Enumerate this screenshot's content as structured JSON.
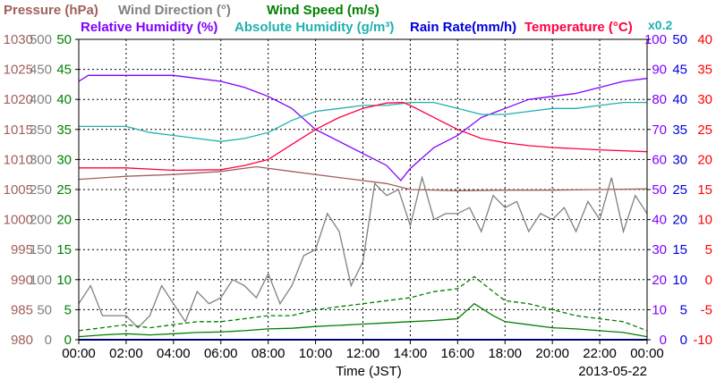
{
  "chart_data": {
    "type": "line",
    "xlabel": "Time (JST)",
    "date": "2013-05-22",
    "x_ticks": [
      "00:00",
      "02:00",
      "04:00",
      "06:00",
      "08:00",
      "10:00",
      "12:00",
      "14:00",
      "16:00",
      "18:00",
      "20:00",
      "22:00",
      "00:00"
    ],
    "x_range_hours": [
      0,
      24
    ],
    "grid": true,
    "legend": [
      {
        "key": "pressure",
        "text": "Pressure (hPa)",
        "color": "#a0605a"
      },
      {
        "key": "wind_dir",
        "text": "Wind Direction (°)",
        "color": "#808080"
      },
      {
        "key": "wind_speed",
        "text": "Wind Speed (m/s)",
        "color": "#008000"
      },
      {
        "key": "rh",
        "text": "Relative Humidity (%)",
        "color": "#8000ff"
      },
      {
        "key": "ah",
        "text": "Absolute Humidity (g/m³)",
        "color": "#20b0b0"
      },
      {
        "key": "rain",
        "text": "Rain Rate(mm/h)",
        "color": "#0000e0"
      },
      {
        "key": "temp",
        "text": "Temperature (°C)",
        "color": "#ff0040"
      }
    ],
    "rain_scale_note": "x0.2",
    "axes": {
      "pressure": {
        "color": "#a0605a",
        "min": 980,
        "max": 1030,
        "ticks": [
          "980",
          "985",
          "990",
          "995",
          "1000",
          "1005",
          "1010",
          "1015",
          "1020",
          "1025",
          "1030"
        ]
      },
      "wind_dir": {
        "color": "#808080",
        "min": 0,
        "max": 500,
        "ticks": [
          "0",
          "50",
          "100",
          "150",
          "200",
          "250",
          "300",
          "350",
          "400",
          "450",
          "500"
        ]
      },
      "wind_speed": {
        "color": "#008000",
        "min": 0,
        "max": 50,
        "ticks": [
          "0",
          "5",
          "10",
          "15",
          "20",
          "25",
          "30",
          "35",
          "40",
          "45",
          "50"
        ]
      },
      "rh_ah": {
        "color": "#8000ff",
        "min": 0,
        "max": 100,
        "ticks": [
          "0",
          "10",
          "20",
          "30",
          "40",
          "50",
          "60",
          "70",
          "80",
          "90",
          "100"
        ]
      },
      "rain": {
        "color": "#0000e0",
        "min": 0,
        "max": 50,
        "ticks": [
          "0",
          "5",
          "10",
          "15",
          "20",
          "25",
          "30",
          "35",
          "40",
          "45",
          "50"
        ]
      },
      "temp": {
        "color": "#ff0000",
        "min": -10,
        "max": 40,
        "ticks": [
          "-10",
          "-5",
          "0",
          "5",
          "10",
          "15",
          "20",
          "25",
          "30",
          "35",
          "40"
        ]
      }
    },
    "series": [
      {
        "name": "Pressure (hPa)",
        "key": "pressure",
        "axis": "pressure",
        "x": [
          0,
          2,
          4,
          6,
          7.5,
          9,
          11,
          13,
          14,
          16,
          18,
          20,
          22,
          24
        ],
        "y": [
          1006.7,
          1007.2,
          1007.5,
          1008.0,
          1008.8,
          1008.0,
          1007.0,
          1006.0,
          1005.0,
          1004.8,
          1004.9,
          1004.9,
          1005.0,
          1005.1
        ]
      },
      {
        "name": "Wind Direction (°)",
        "key": "wind_dir",
        "axis": "wind_dir",
        "x": [
          0,
          0.5,
          1,
          2,
          2.5,
          3,
          3.5,
          4,
          4.5,
          5,
          5.5,
          6,
          6.5,
          7,
          7.5,
          8,
          8.5,
          9,
          9.5,
          10,
          10.5,
          11,
          11.5,
          12,
          12.5,
          13,
          13.5,
          14,
          14.5,
          15,
          15.5,
          16,
          16.5,
          17,
          17.5,
          18,
          18.5,
          19,
          19.5,
          20,
          20.5,
          21,
          21.5,
          22,
          22.5,
          23,
          23.5,
          24
        ],
        "y": [
          60,
          90,
          40,
          40,
          20,
          40,
          90,
          60,
          30,
          80,
          60,
          70,
          100,
          90,
          70,
          110,
          60,
          90,
          140,
          150,
          210,
          180,
          90,
          130,
          260,
          240,
          250,
          190,
          270,
          200,
          210,
          210,
          220,
          180,
          240,
          220,
          230,
          180,
          210,
          200,
          220,
          180,
          230,
          200,
          270,
          180,
          240,
          210
        ]
      },
      {
        "name": "Wind Speed (m/s) solid",
        "key": "wind_speed",
        "axis": "wind_speed",
        "x": [
          0,
          1,
          2,
          3,
          4,
          5,
          6,
          7,
          8,
          9,
          10,
          11,
          12,
          13,
          14,
          15,
          16,
          16.7,
          17.5,
          18,
          19,
          20,
          21,
          22,
          23,
          24
        ],
        "y": [
          0.5,
          0.8,
          1.0,
          0.8,
          1.0,
          1.2,
          1.3,
          1.5,
          1.8,
          1.9,
          2.2,
          2.4,
          2.6,
          2.8,
          3.0,
          3.2,
          3.5,
          6.0,
          4.0,
          3.0,
          2.5,
          2.0,
          1.8,
          1.5,
          1.2,
          0.5
        ]
      },
      {
        "name": "Wind Speed (m/s) dashed",
        "key": "wind_speed",
        "axis": "wind_speed",
        "dashed": true,
        "x": [
          0,
          1,
          2,
          3,
          4,
          5,
          6,
          7,
          8,
          9,
          10,
          11,
          12,
          13,
          14,
          15,
          16,
          16.7,
          17.5,
          18,
          19,
          20,
          21,
          22,
          23,
          24
        ],
        "y": [
          1.5,
          2.0,
          2.5,
          2.0,
          2.5,
          3.0,
          3.0,
          3.5,
          4.0,
          4.0,
          5.0,
          5.5,
          6.0,
          6.5,
          7.0,
          8.0,
          8.5,
          10.5,
          8.0,
          6.5,
          6.0,
          5.0,
          4.0,
          3.5,
          3.0,
          1.5
        ]
      },
      {
        "name": "Relative Humidity (%)",
        "key": "rh",
        "axis": "rh_ah",
        "x": [
          0,
          0.4,
          2,
          4,
          5,
          6,
          7,
          8,
          9,
          10,
          11,
          12,
          13,
          13.6,
          14,
          15,
          16,
          17,
          18,
          19,
          20,
          21,
          22,
          23,
          24
        ],
        "y": [
          86,
          88,
          88,
          88,
          87,
          86,
          84,
          81,
          77,
          70,
          66,
          62,
          58,
          53,
          57,
          64,
          68,
          74,
          77,
          80,
          81,
          82,
          84,
          86,
          87
        ]
      },
      {
        "name": "Absolute Humidity (g/m³)",
        "key": "ah",
        "axis": "rh_ah",
        "x": [
          0,
          2,
          3,
          4,
          5,
          6,
          7,
          8,
          9,
          10,
          11,
          12,
          13,
          14,
          15,
          16,
          17,
          18,
          19,
          20,
          21,
          22,
          23,
          24
        ],
        "y": [
          71,
          71,
          69,
          68,
          67,
          66,
          67,
          69,
          73,
          76,
          77,
          78,
          78,
          79,
          79,
          77,
          75,
          75,
          76,
          77,
          77,
          78,
          79,
          79
        ]
      },
      {
        "name": "Rain Rate(mm/h)",
        "key": "rain",
        "axis": "rain",
        "x": [
          0,
          24
        ],
        "y": [
          0,
          0
        ]
      },
      {
        "name": "Temperature (°C)",
        "key": "temp",
        "axis": "temp",
        "x": [
          0,
          2,
          4,
          6,
          7,
          8,
          9,
          10,
          11,
          12,
          13,
          13.7,
          14,
          15,
          16,
          17,
          18,
          19,
          20,
          22,
          24
        ],
        "y": [
          18.6,
          18.6,
          18.2,
          18.3,
          19.0,
          20.0,
          22.5,
          25.0,
          27.0,
          28.5,
          29.4,
          29.5,
          29.0,
          27.0,
          25.0,
          23.5,
          22.8,
          22.3,
          22.0,
          21.6,
          21.3
        ]
      }
    ]
  }
}
